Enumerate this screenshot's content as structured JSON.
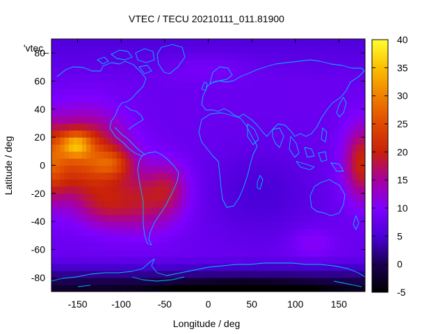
{
  "chart_data": {
    "type": "heatmap",
    "title": "VTEC / TECU 20210111_011.81900",
    "xlabel": "Longitude / deg",
    "ylabel": "Latitude / deg",
    "series_label": "'vtec_",
    "xlim": [
      -180,
      180
    ],
    "ylim": [
      -90,
      90
    ],
    "xticks": [
      -150,
      -100,
      -50,
      0,
      50,
      100,
      150
    ],
    "yticks": [
      -80,
      -60,
      -40,
      -20,
      0,
      20,
      40,
      60,
      80
    ],
    "colorbar": {
      "range": [
        -5,
        40
      ],
      "ticks": [
        -5,
        0,
        5,
        10,
        15,
        20,
        25,
        30,
        35,
        40
      ]
    },
    "field_description": {
      "background_level": 8,
      "features": [
        {
          "name": "pacific-crest",
          "lon": -150,
          "lat": 12,
          "peak": 37
        },
        {
          "name": "south-atlantic-crest",
          "lon": -60,
          "lat": -25,
          "peak": 24
        },
        {
          "name": "west-pacific-crest",
          "lon": 175,
          "lat": 0,
          "peak": 23
        },
        {
          "name": "antarctic-low",
          "lon": 60,
          "lat": -85,
          "peak": -3
        }
      ]
    }
  }
}
